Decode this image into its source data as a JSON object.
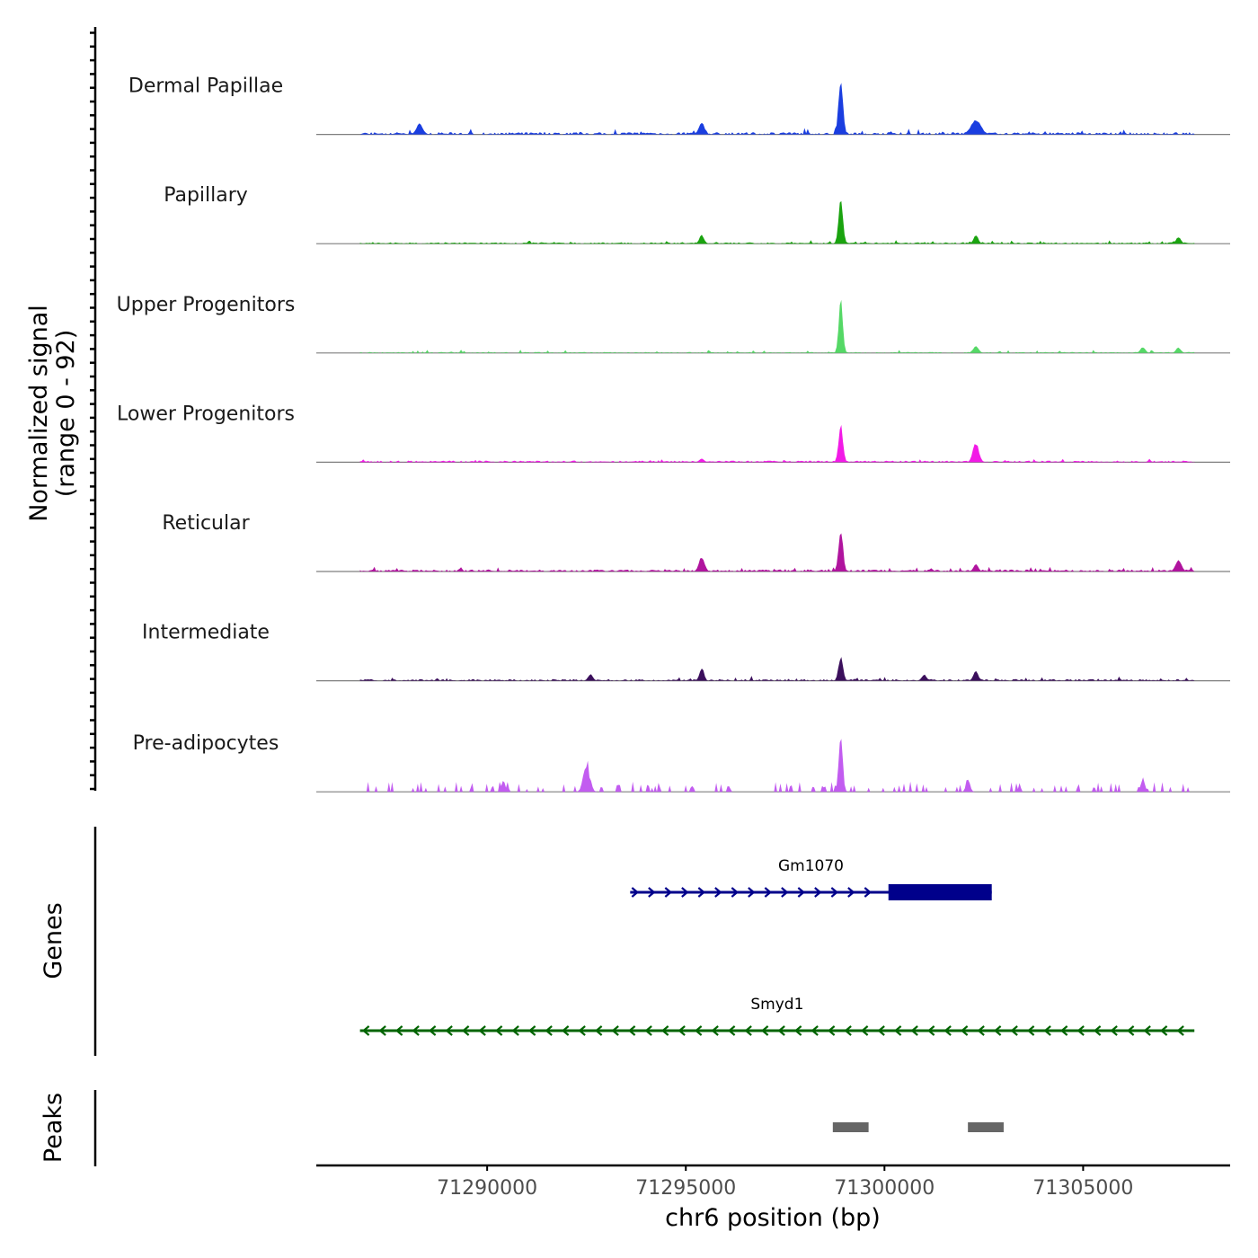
{
  "chart_data": {
    "type": "genome-coverage",
    "y_axis_title": "Normalized signal",
    "y_axis_range_label": "(range 0 - 92)",
    "y_range": [
      0,
      92
    ],
    "x_axis_title": "chr6 position (bp)",
    "x_range": [
      71285700,
      71308700
    ],
    "x_ticks": [
      71290000,
      71295000,
      71300000,
      71305000
    ],
    "x_tick_labels": [
      "71290000",
      "71295000",
      "71300000",
      "71305000"
    ],
    "signal_extent": [
      71286800,
      71307800
    ],
    "tracks": [
      {
        "name": "Dermal Papillae",
        "color": "#1a3ee0",
        "base": 3.5,
        "noise": 3.5,
        "sparsity": 0.55,
        "peaks": [
          {
            "pos": 71298900,
            "height": 92,
            "width": 110
          },
          {
            "pos": 71302300,
            "height": 24,
            "width": 250
          },
          {
            "pos": 71295400,
            "height": 19,
            "width": 140
          },
          {
            "pos": 71288300,
            "height": 18,
            "width": 160
          }
        ]
      },
      {
        "name": "Papillary",
        "color": "#1aa30f",
        "base": 2,
        "noise": 2,
        "sparsity": 0.2,
        "peaks": [
          {
            "pos": 71298900,
            "height": 72,
            "width": 110
          },
          {
            "pos": 71302300,
            "height": 14,
            "width": 120
          },
          {
            "pos": 71295400,
            "height": 14,
            "width": 120
          },
          {
            "pos": 71307400,
            "height": 11,
            "width": 120
          }
        ]
      },
      {
        "name": "Upper Progenitors",
        "color": "#55d866",
        "base": 1.5,
        "noise": 2,
        "sparsity": 0.3,
        "peaks": [
          {
            "pos": 71298900,
            "height": 92,
            "width": 100
          },
          {
            "pos": 71302300,
            "height": 11,
            "width": 140
          },
          {
            "pos": 71306500,
            "height": 10,
            "width": 120
          },
          {
            "pos": 71307400,
            "height": 9,
            "width": 120
          }
        ]
      },
      {
        "name": "Lower Progenitors",
        "color": "#f21ae6",
        "base": 2.5,
        "noise": 2,
        "sparsity": 0.2,
        "peaks": [
          {
            "pos": 71298900,
            "height": 62,
            "width": 110
          },
          {
            "pos": 71302300,
            "height": 32,
            "width": 150
          },
          {
            "pos": 71295400,
            "height": 6,
            "width": 120
          }
        ]
      },
      {
        "name": "Reticular",
        "color": "#b0149e",
        "base": 3,
        "noise": 3,
        "sparsity": 0.25,
        "peaks": [
          {
            "pos": 71298900,
            "height": 70,
            "width": 110
          },
          {
            "pos": 71295400,
            "height": 24,
            "width": 140
          },
          {
            "pos": 71307400,
            "height": 18,
            "width": 150
          },
          {
            "pos": 71302300,
            "height": 12,
            "width": 120
          }
        ]
      },
      {
        "name": "Intermediate",
        "color": "#3b0f5c",
        "base": 2.5,
        "noise": 3,
        "sparsity": 0.35,
        "peaks": [
          {
            "pos": 71298900,
            "height": 40,
            "width": 110
          },
          {
            "pos": 71295400,
            "height": 22,
            "width": 110
          },
          {
            "pos": 71302300,
            "height": 17,
            "width": 120
          },
          {
            "pos": 71292600,
            "height": 11,
            "width": 120
          },
          {
            "pos": 71301000,
            "height": 10,
            "width": 120
          }
        ]
      },
      {
        "name": "Pre-adipocytes",
        "color": "#c25cf0",
        "base": 0,
        "noise": 0,
        "sparsity": 0,
        "peaks": [
          {
            "pos": 71298900,
            "height": 92,
            "width": 100
          },
          {
            "pos": 71292500,
            "height": 55,
            "width": 160
          },
          {
            "pos": 71306500,
            "height": 25,
            "width": 100
          },
          {
            "pos": 71302100,
            "height": 25,
            "width": 100
          },
          {
            "pos": 71290400,
            "height": 22,
            "width": 100
          }
        ]
      }
    ],
    "genes": [
      {
        "name": "Gm1070",
        "strand": "+",
        "start": 71293600,
        "end": 71302700,
        "thick_start": 71300100,
        "thick_end": 71302700,
        "color": "#00008b"
      },
      {
        "name": "Smyd1",
        "strand": "-",
        "start": 71286800,
        "end": 71307800,
        "color": "#006400"
      }
    ],
    "genes_label": "Genes",
    "peaks_label": "Peaks",
    "peaks": [
      {
        "start": 71298700,
        "end": 71299600
      },
      {
        "start": 71302100,
        "end": 71303000
      }
    ],
    "peak_color": "#666666"
  }
}
